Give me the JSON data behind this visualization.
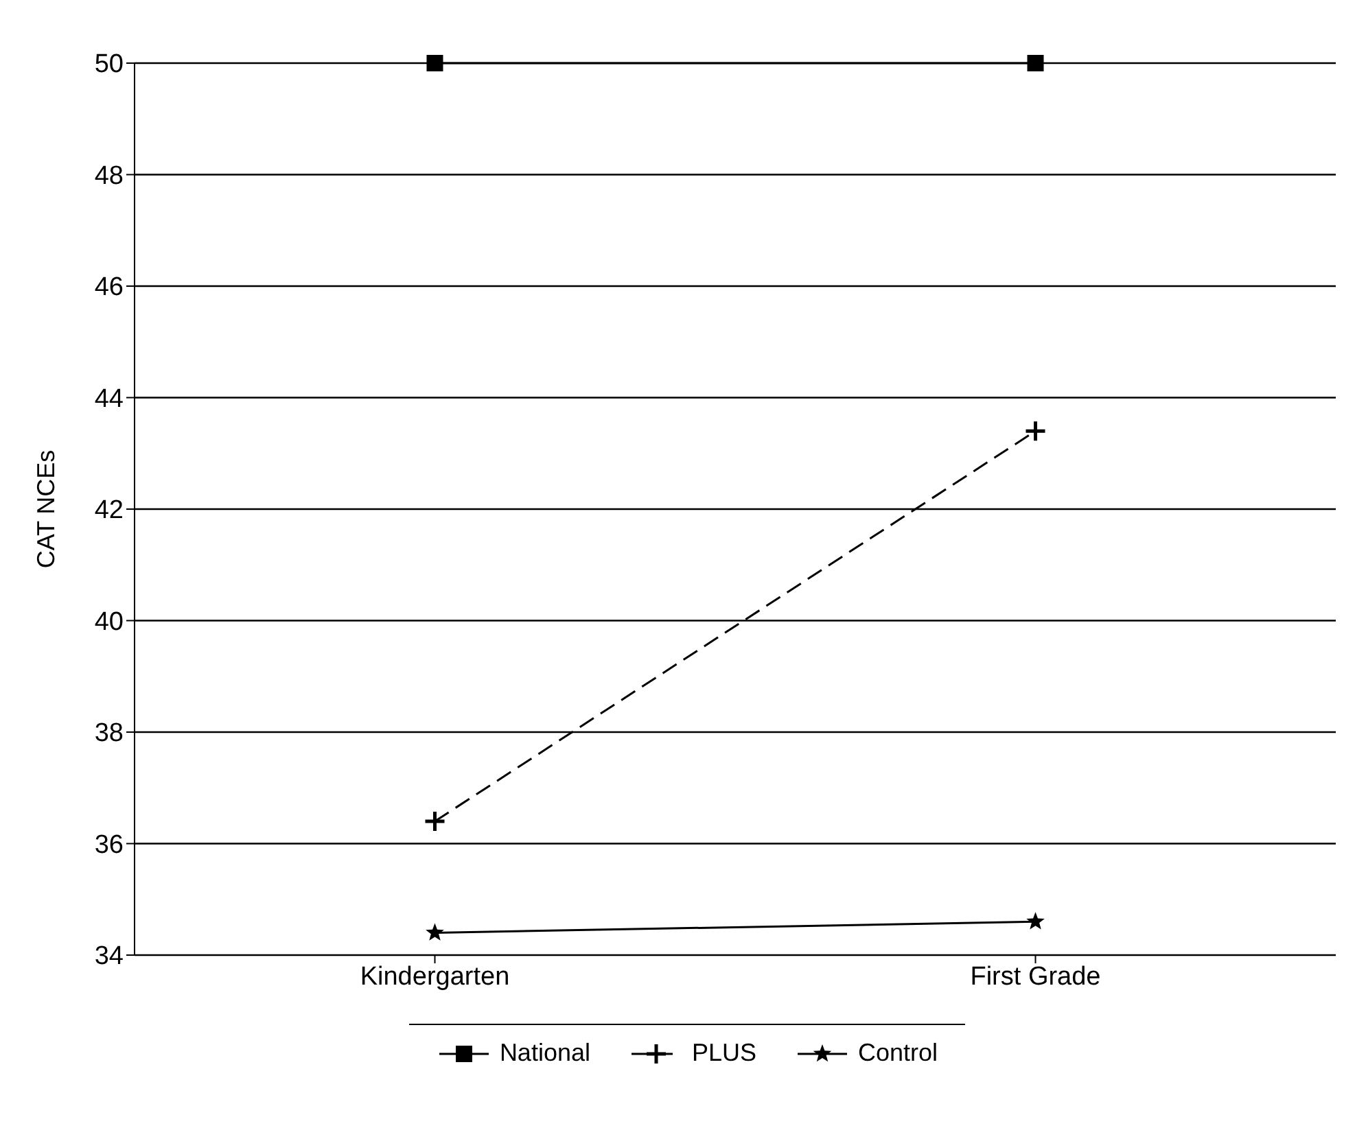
{
  "chart_data": {
    "type": "line",
    "ylabel": "CAT NCEs",
    "categories": [
      "Kindergarten",
      "First Grade"
    ],
    "series": [
      {
        "name": "National",
        "color": "#000000",
        "values": [
          50,
          50
        ],
        "marker": "square",
        "line_style": "solid"
      },
      {
        "name": "PLUS",
        "color": "#000000",
        "values": [
          36.4,
          43.4
        ],
        "marker": "cross",
        "line_style": "dashed"
      },
      {
        "name": "Control",
        "color": "#000000",
        "values": [
          34.4,
          34.6
        ],
        "marker": "star",
        "line_style": "solid"
      }
    ],
    "ylim": [
      34,
      50
    ],
    "yticks": [
      34,
      36,
      38,
      40,
      42,
      44,
      46,
      48,
      50
    ],
    "grid": "y",
    "legend": "bottom"
  }
}
